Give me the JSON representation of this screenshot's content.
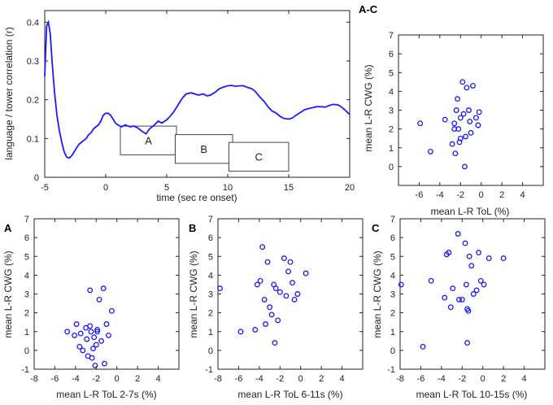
{
  "chart_data": [
    {
      "id": "timecourse",
      "type": "line",
      "title": "",
      "xlabel": "time (sec re onset)",
      "ylabel": "language / tower correlation (r)",
      "xlim": [
        -5,
        20
      ],
      "ylim": [
        0,
        0.43
      ],
      "xticks": [
        -5,
        0,
        5,
        10,
        15,
        20
      ],
      "yticks": [
        0,
        0.1,
        0.2,
        0.3,
        0.4
      ],
      "ytick_labels": [
        "0",
        "0.1",
        "0.2",
        "0.3",
        "0.4"
      ],
      "color": "#1a1aff",
      "series": [
        {
          "name": "r",
          "x": [
            -5,
            -4.85,
            -4.7,
            -4.55,
            -4.4,
            -4.2,
            -4.0,
            -3.8,
            -3.6,
            -3.4,
            -3.2,
            -3.0,
            -2.8,
            -2.6,
            -2.4,
            -2.2,
            -2.0,
            -1.8,
            -1.6,
            -1.4,
            -1.2,
            -1.0,
            -0.8,
            -0.6,
            -0.4,
            -0.2,
            0.0,
            0.2,
            0.4,
            0.6,
            0.8,
            1.0,
            1.3,
            1.6,
            2.0,
            2.3,
            2.6,
            3.0,
            3.3,
            3.6,
            4.0,
            4.3,
            4.6,
            5.0,
            5.3,
            5.6,
            6.0,
            6.3,
            6.6,
            7.0,
            7.3,
            7.6,
            8.0,
            8.3,
            8.6,
            9.0,
            9.3,
            9.6,
            10.0,
            10.3,
            10.6,
            11.0,
            11.3,
            11.6,
            12.0,
            12.3,
            12.6,
            13.0,
            13.3,
            13.6,
            14.0,
            14.3,
            14.6,
            15.0,
            15.3,
            15.6,
            16.0,
            16.3,
            16.6,
            17.0,
            17.3,
            17.6,
            18.0,
            18.3,
            18.6,
            19.0,
            19.3,
            19.6,
            20.0
          ],
          "y": [
            0.26,
            0.39,
            0.4,
            0.37,
            0.3,
            0.22,
            0.16,
            0.12,
            0.09,
            0.065,
            0.052,
            0.05,
            0.055,
            0.065,
            0.075,
            0.085,
            0.09,
            0.095,
            0.1,
            0.11,
            0.115,
            0.125,
            0.13,
            0.135,
            0.145,
            0.16,
            0.165,
            0.165,
            0.16,
            0.15,
            0.14,
            0.135,
            0.13,
            0.135,
            0.13,
            0.132,
            0.128,
            0.118,
            0.112,
            0.125,
            0.135,
            0.145,
            0.14,
            0.148,
            0.158,
            0.17,
            0.19,
            0.205,
            0.215,
            0.218,
            0.215,
            0.212,
            0.215,
            0.21,
            0.212,
            0.22,
            0.228,
            0.232,
            0.236,
            0.237,
            0.235,
            0.236,
            0.236,
            0.232,
            0.228,
            0.22,
            0.208,
            0.195,
            0.182,
            0.172,
            0.165,
            0.157,
            0.152,
            0.15,
            0.153,
            0.16,
            0.168,
            0.174,
            0.177,
            0.18,
            0.182,
            0.182,
            0.181,
            0.185,
            0.188,
            0.187,
            0.182,
            0.174,
            0.162
          ]
        }
      ],
      "windows": [
        {
          "label": "A",
          "start": 1.2,
          "end": 5.8,
          "level_top": 0.132,
          "level_bottom": 0.058
        },
        {
          "label": "B",
          "start": 5.7,
          "end": 10.4,
          "level_top": 0.11,
          "level_bottom": 0.036
        },
        {
          "label": "C",
          "start": 10.1,
          "end": 15.0,
          "level_top": 0.09,
          "level_bottom": 0.016
        }
      ]
    },
    {
      "id": "scatter-AC",
      "type": "scatter",
      "panel_label": "A-C",
      "xlabel": "mean L-R ToL (%)",
      "ylabel": "mean L-R CWG (%)",
      "xlim": [
        -8,
        6
      ],
      "ylim": [
        -1,
        7
      ],
      "xticks": [
        -6,
        -4,
        -2,
        0,
        2,
        4
      ],
      "yticks": [
        0,
        1,
        2,
        3,
        4,
        5,
        6,
        7
      ],
      "color": "#1a1aff",
      "x": [
        -5.9,
        -4.9,
        -3.5,
        -2.8,
        -2.6,
        -2.4,
        -2.3,
        -2.2,
        -2.1,
        -2.0,
        -1.8,
        -1.7,
        -1.5,
        -1.4,
        -1.2,
        -1.1,
        -1.0,
        -0.8,
        -0.5,
        -0.3,
        -0.2,
        -2.5,
        -1.6,
        -2.6,
        -2.0
      ],
      "y": [
        2.3,
        0.8,
        2.5,
        1.2,
        2.3,
        3.0,
        3.6,
        2.0,
        1.3,
        2.6,
        4.5,
        2.8,
        1.6,
        4.2,
        3.0,
        2.4,
        1.8,
        4.3,
        2.6,
        2.2,
        2.9,
        0.7,
        0.0,
        2.0,
        1.5
      ]
    },
    {
      "id": "scatter-A",
      "type": "scatter",
      "panel_label": "A",
      "xlabel": "mean L-R ToL 2-7s (%)",
      "ylabel": "mean L-R CWG (%)",
      "xlim": [
        -8,
        6
      ],
      "ylim": [
        -1,
        7
      ],
      "xticks": [
        -8,
        -6,
        -4,
        -2,
        0,
        2,
        4
      ],
      "yticks": [
        -1,
        0,
        1,
        2,
        3,
        4,
        5,
        6,
        7
      ],
      "color": "#1a1aff",
      "x": [
        -4.8,
        -4.1,
        -3.9,
        -3.6,
        -3.3,
        -3.0,
        -2.9,
        -2.8,
        -2.6,
        -2.5,
        -2.4,
        -2.2,
        -2.1,
        -2.0,
        -1.9,
        -1.7,
        -1.5,
        -1.3,
        -1.0,
        -1.2,
        -0.8,
        -0.5,
        -2.6,
        -2.3,
        -1.9,
        -3.5
      ],
      "y": [
        1.0,
        0.8,
        1.4,
        0.2,
        0.0,
        1.2,
        0.6,
        -0.3,
        3.2,
        1.0,
        -0.4,
        0.7,
        -0.8,
        0.3,
        1.0,
        2.7,
        0.5,
        3.3,
        1.4,
        -0.7,
        0.8,
        2.1,
        1.3,
        0.1,
        1.1,
        0.9
      ]
    },
    {
      "id": "scatter-B",
      "type": "scatter",
      "panel_label": "B",
      "xlabel": "mean L-R ToL 6-11s (%)",
      "ylabel": "mean L-R CWG (%)",
      "xlim": [
        -8,
        6
      ],
      "ylim": [
        -1,
        7
      ],
      "xticks": [
        -8,
        -6,
        -4,
        -2,
        0,
        2,
        4
      ],
      "yticks": [
        -1,
        0,
        1,
        2,
        3,
        4,
        5,
        6,
        7
      ],
      "color": "#1a1aff",
      "x": [
        -7.8,
        -5.8,
        -4.4,
        -4.2,
        -3.9,
        -3.7,
        -3.5,
        -3.4,
        -3.2,
        -3.0,
        -2.8,
        -2.6,
        -2.5,
        -2.4,
        -2.2,
        -2.0,
        -1.6,
        -1.4,
        -1.2,
        -1.0,
        -0.8,
        -0.6,
        -0.3,
        0.5
      ],
      "y": [
        3.3,
        1.0,
        1.1,
        3.5,
        3.7,
        5.5,
        2.7,
        1.4,
        4.7,
        2.3,
        1.9,
        3.5,
        0.4,
        3.3,
        1.6,
        3.1,
        4.9,
        2.9,
        4.2,
        4.7,
        3.6,
        2.7,
        3.0,
        4.1
      ]
    },
    {
      "id": "scatter-C",
      "type": "scatter",
      "panel_label": "C",
      "xlabel": "mean L-R ToL 10-15s (%)",
      "ylabel": "mean L-R CWG (%)",
      "xlim": [
        -8,
        6
      ],
      "ylim": [
        -1,
        7
      ],
      "xticks": [
        -8,
        -6,
        -4,
        -2,
        0,
        2,
        4
      ],
      "yticks": [
        -1,
        0,
        1,
        2,
        3,
        4,
        5,
        6,
        7
      ],
      "color": "#1a1aff",
      "x": [
        -7.9,
        -5.8,
        -5.0,
        -3.7,
        -3.5,
        -3.3,
        -3.1,
        -2.9,
        -2.4,
        -2.3,
        -2.0,
        -1.7,
        -1.6,
        -1.5,
        -1.4,
        -1.3,
        -1.1,
        -0.9,
        -0.6,
        -0.4,
        -0.2,
        0.1,
        0.6,
        2.0,
        -1.5
      ],
      "y": [
        3.5,
        0.2,
        3.7,
        2.8,
        5.1,
        5.2,
        2.3,
        3.3,
        6.2,
        2.7,
        2.7,
        5.7,
        3.5,
        2.2,
        2.1,
        5.0,
        4.5,
        3.0,
        3.2,
        5.2,
        3.7,
        3.5,
        4.9,
        4.9,
        0.4
      ]
    }
  ]
}
